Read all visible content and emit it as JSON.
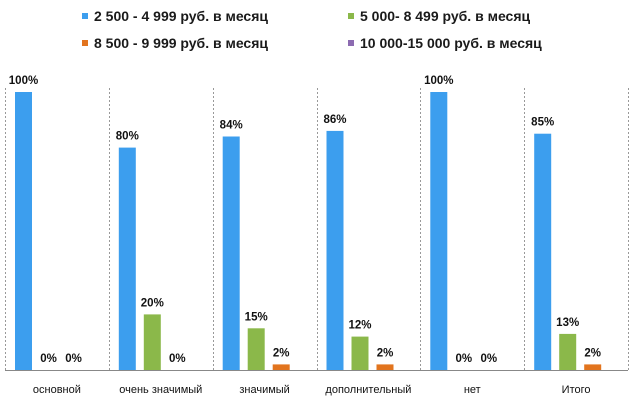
{
  "chart_data": {
    "type": "bar",
    "title": "",
    "xlabel": "",
    "ylabel": "",
    "ylim": [
      0,
      100
    ],
    "grid": false,
    "legend_position": "top",
    "categories": [
      "основной",
      "очень значимый",
      "значимый",
      "дополнительный",
      "нет",
      "Итого"
    ],
    "series": [
      {
        "name": "2 500 - 4 999 руб. в месяц",
        "color": "#3c9eee",
        "values": [
          100,
          80,
          84,
          86,
          100,
          85
        ],
        "labels": [
          "100%",
          "80%",
          "84%",
          "86%",
          "100%",
          "85%"
        ]
      },
      {
        "name": "5 000- 8 499 руб. в месяц",
        "color": "#8bb84a",
        "values": [
          0,
          20,
          15,
          12,
          0,
          13
        ],
        "labels": [
          "0%",
          "20%",
          "15%",
          "12%",
          "0%",
          "13%"
        ]
      },
      {
        "name": "8 500 - 9 999 руб. в месяц",
        "color": "#e2741e",
        "values": [
          0,
          0,
          2,
          2,
          0,
          2
        ],
        "labels": [
          "0%",
          "0%",
          "2%",
          "2%",
          "0%",
          "2%"
        ]
      },
      {
        "name": "10 000-15 000 руб. в месяц",
        "color": "#8c6bb1",
        "values": [
          0,
          0,
          0,
          0,
          0,
          0
        ],
        "labels": []
      }
    ]
  }
}
